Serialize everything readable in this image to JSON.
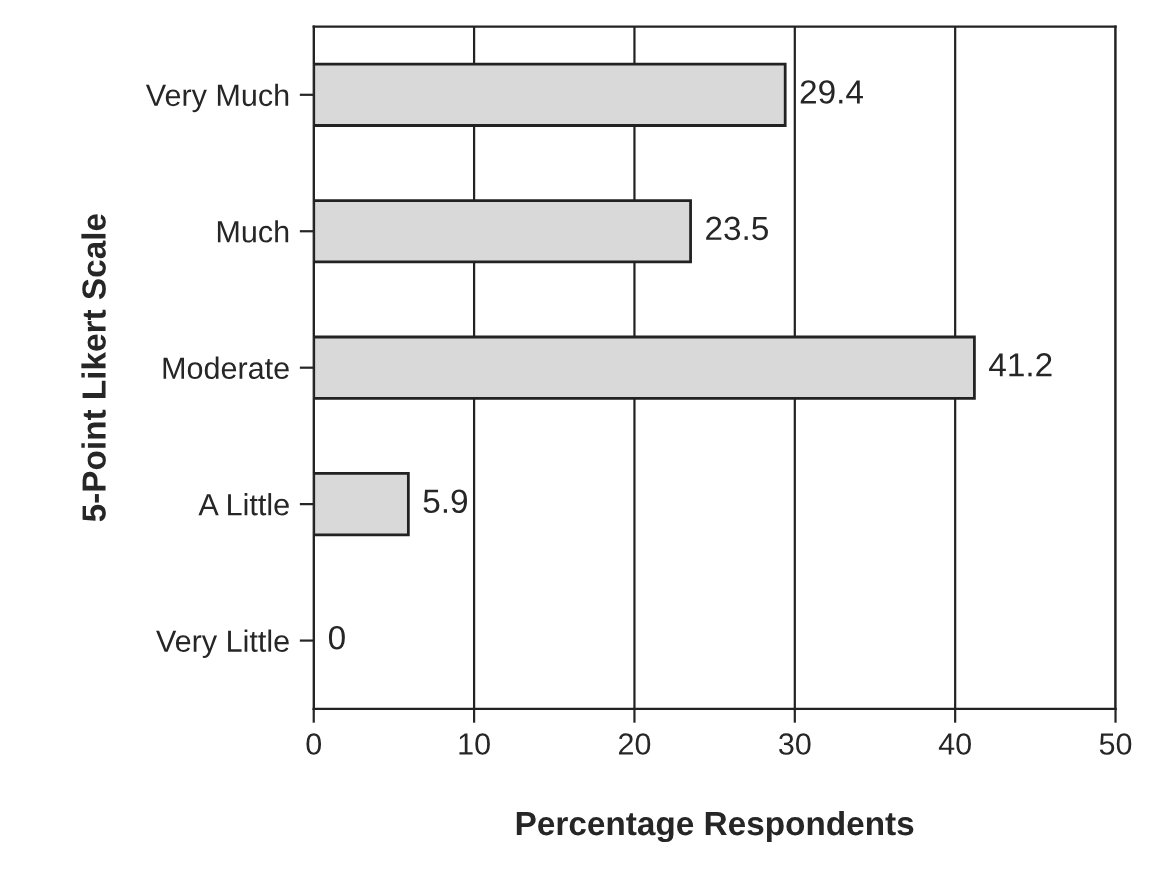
{
  "chart_data": {
    "type": "bar",
    "orientation": "horizontal",
    "xlabel": "Percentage Respondents",
    "ylabel": "5-Point Likert Scale",
    "categories": [
      "Very Much",
      "Much",
      "Moderate",
      "A Little",
      "Very Little"
    ],
    "values": [
      29.4,
      23.5,
      41.2,
      5.9,
      0
    ],
    "color": "#d9d9d9",
    "xlim": [
      0,
      50
    ],
    "xticks": [
      0,
      10,
      20,
      30,
      40,
      50
    ],
    "grid": "x",
    "data_labels": true
  }
}
